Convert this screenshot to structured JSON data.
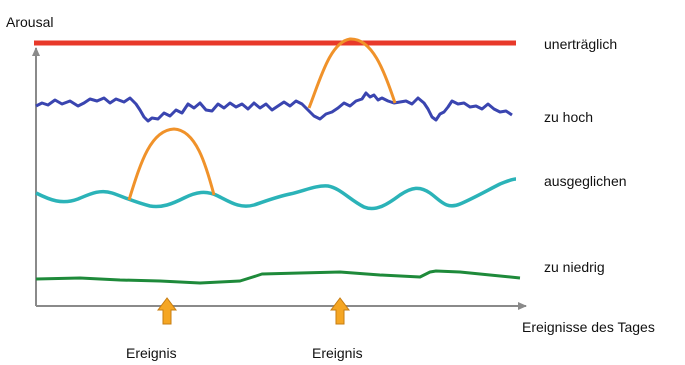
{
  "diagram": {
    "y_axis_label": "Arousal",
    "x_axis_label": "Ereignisse des Tages",
    "levels": [
      {
        "key": "unertraeglich",
        "label": "unerträglich",
        "color": "#e8392a"
      },
      {
        "key": "zu_hoch",
        "label": "zu hoch",
        "color": "#3a45b0"
      },
      {
        "key": "ausgeglichen",
        "label": "ausgeglichen",
        "color": "#2bb3b8"
      },
      {
        "key": "zu_niedrig",
        "label": "zu niedrig",
        "color": "#1e8a3a"
      }
    ],
    "events": [
      {
        "label": "Ereignis"
      },
      {
        "label": "Ereignis"
      }
    ],
    "spike_color": "#f0922a",
    "arrow_color": "#f5a623",
    "axis_color": "#8a8a8a"
  }
}
